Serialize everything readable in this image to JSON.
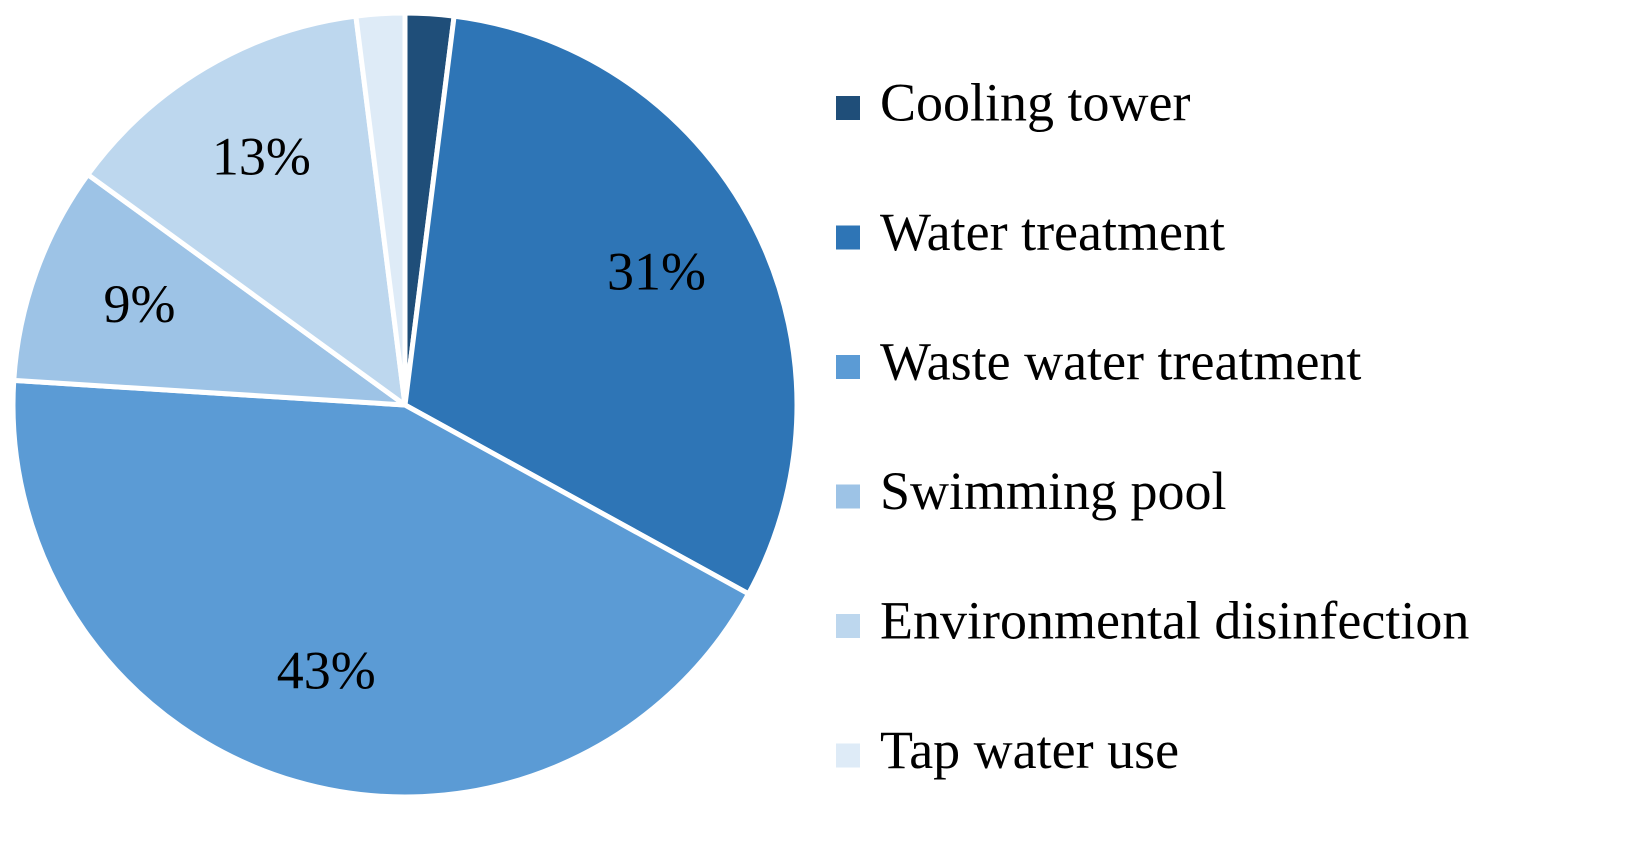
{
  "chart_data": {
    "type": "pie",
    "slices": [
      {
        "label": "Cooling tower",
        "value": 2,
        "color": "#1f4e79",
        "data_label": ""
      },
      {
        "label": "Water treatment",
        "value": 31,
        "color": "#2e75b6",
        "data_label": "31%"
      },
      {
        "label": "Waste water treatment",
        "value": 43,
        "color": "#5b9bd5",
        "data_label": "43%"
      },
      {
        "label": "Swimming pool",
        "value": 9,
        "color": "#9dc3e6",
        "data_label": "9%"
      },
      {
        "label": "Environmental disinfection",
        "value": 13,
        "color": "#bdd7ee",
        "data_label": "13%"
      },
      {
        "label": "Tap water use",
        "value": 2,
        "color": "#deebf7",
        "data_label": ""
      }
    ],
    "legend_position": "right",
    "start_angle": "top, clockwise"
  }
}
